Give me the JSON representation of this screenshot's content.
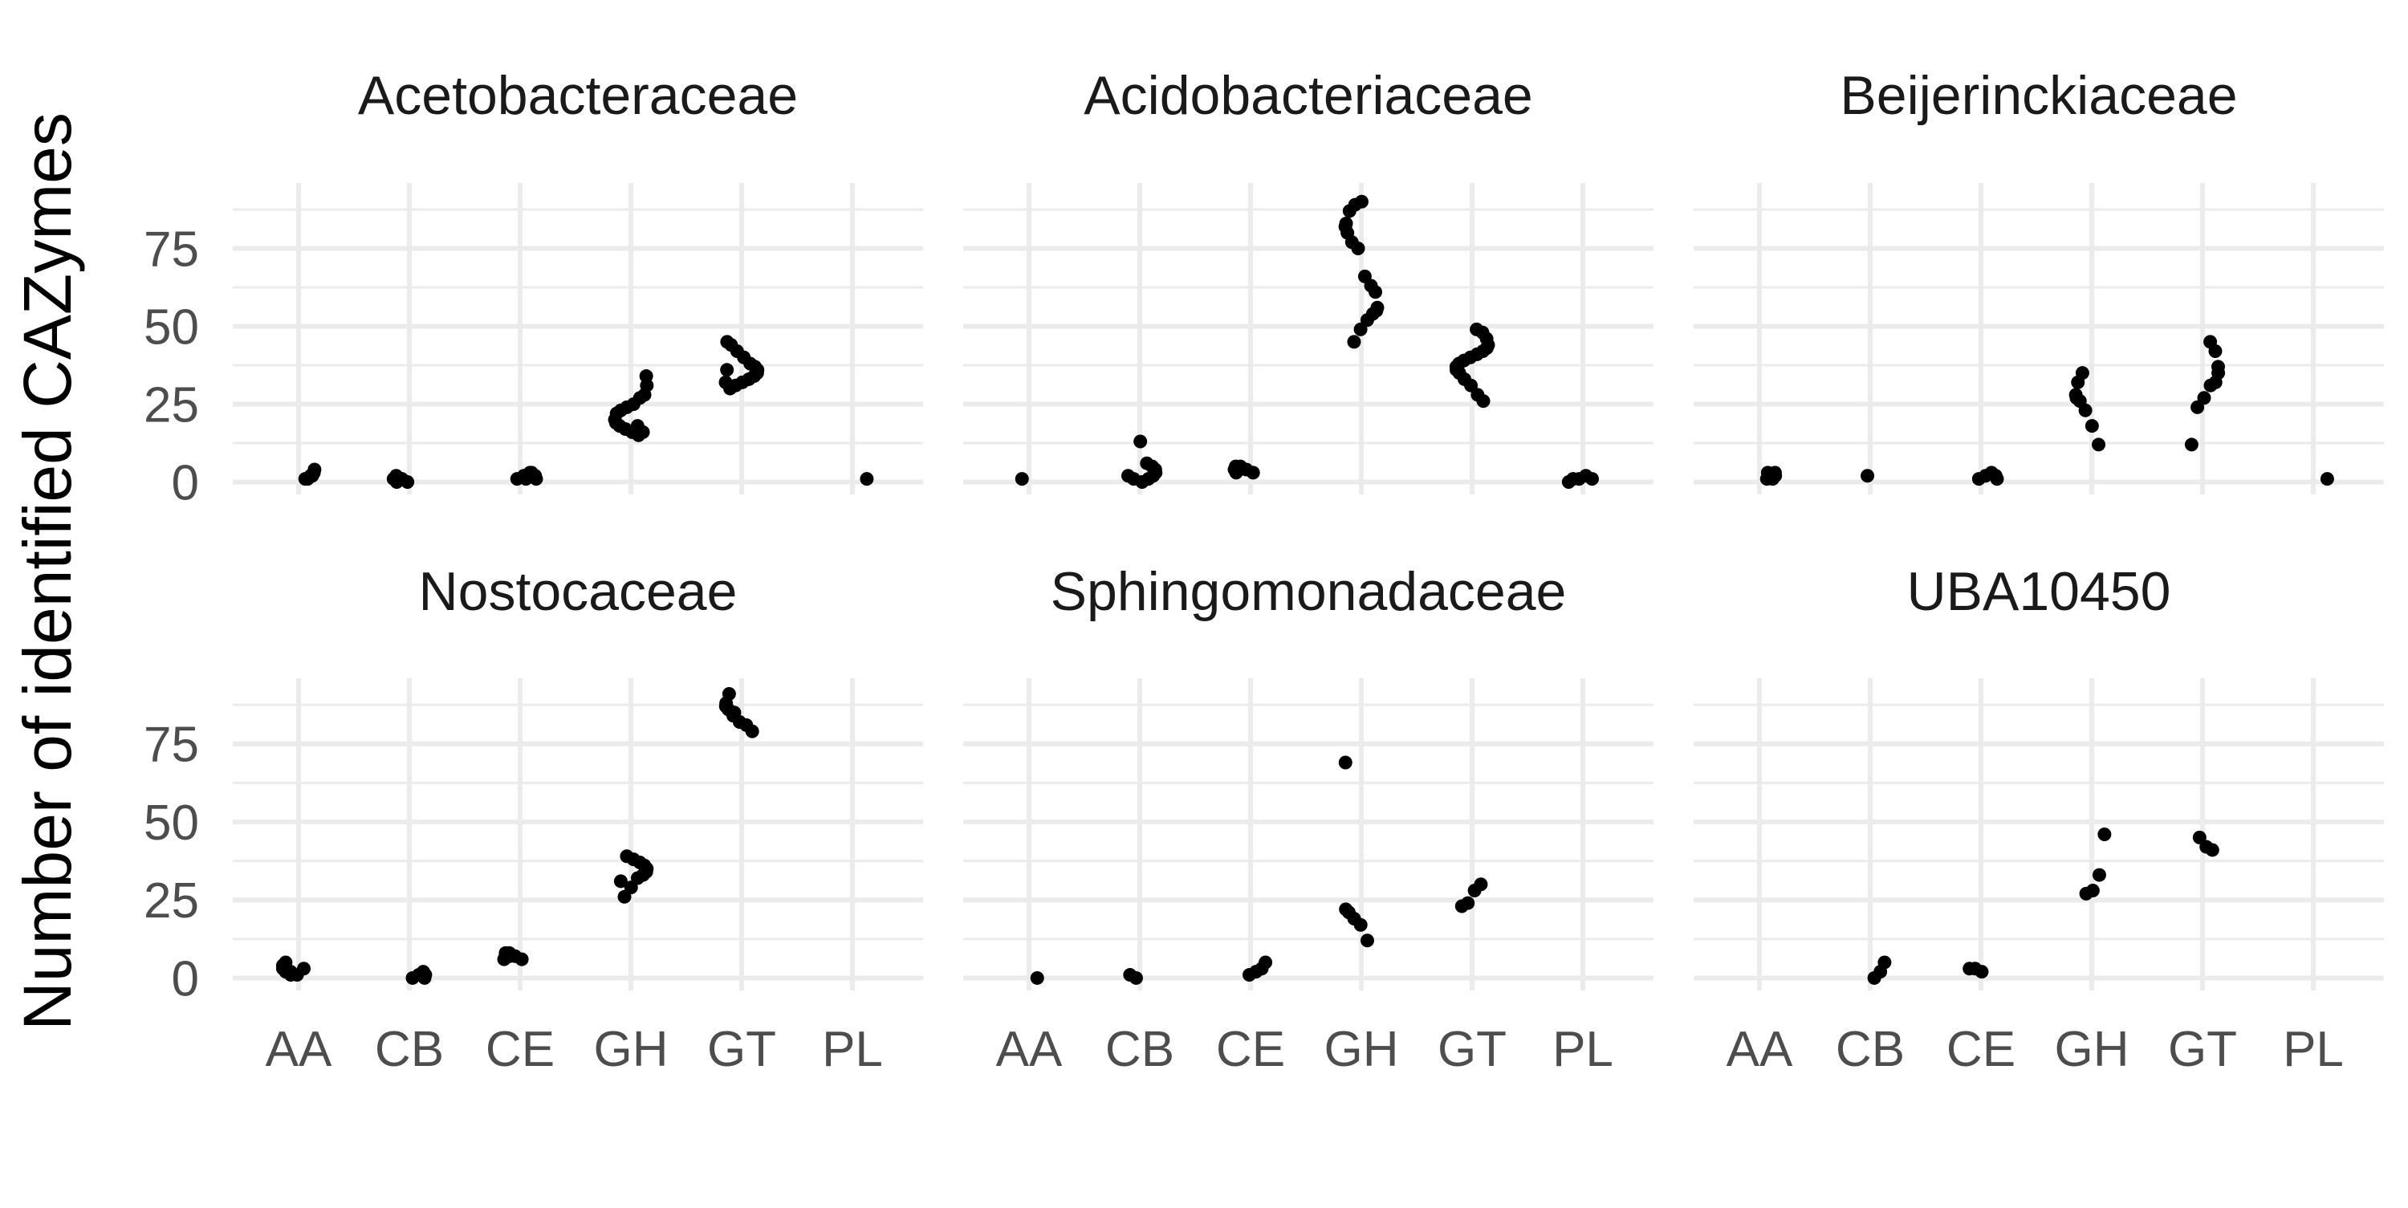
{
  "chart_data": {
    "type": "scatter",
    "ylabel": "Number of identified CAZymes",
    "xlabel": "",
    "categories": [
      "AA",
      "CB",
      "CE",
      "GH",
      "GT",
      "PL"
    ],
    "y_ticks": [
      0,
      25,
      50,
      75
    ],
    "ylim": [
      -4,
      96
    ],
    "grid": true,
    "style": {
      "point_color": "#000000",
      "grid_color": "#ebebeb",
      "background": "#ffffff"
    },
    "panels": [
      {
        "title": "Acetobacteraceae",
        "points": {
          "AA": [
            1,
            2,
            3,
            4,
            2,
            1
          ],
          "CB": [
            0,
            1,
            2,
            1,
            1,
            0,
            1
          ],
          "CE": [
            1,
            2,
            3,
            2,
            1,
            2,
            3,
            1
          ],
          "GH": [
            15,
            16,
            17,
            18,
            19,
            20,
            22,
            23,
            24,
            25,
            27,
            28,
            31,
            34,
            16,
            18
          ],
          "GT": [
            30,
            31,
            32,
            33,
            34,
            35,
            36,
            37,
            38,
            40,
            42,
            44,
            45,
            32,
            36
          ],
          "PL": [
            1
          ]
        }
      },
      {
        "title": "Acidobacteriaceae",
        "points": {
          "AA": [
            1
          ],
          "CB": [
            0,
            1,
            2,
            3,
            4,
            5,
            6,
            13,
            1,
            2
          ],
          "CE": [
            3,
            4,
            5,
            3,
            4,
            5,
            4
          ],
          "GH": [
            45,
            49,
            52,
            54,
            55,
            56,
            61,
            63,
            66,
            75,
            77,
            80,
            82,
            83,
            87,
            89,
            90
          ],
          "GT": [
            26,
            28,
            31,
            33,
            35,
            36,
            37,
            38,
            39,
            40,
            41,
            42,
            43,
            44,
            46,
            48,
            49
          ],
          "PL": [
            0,
            1,
            1,
            2,
            1
          ]
        }
      },
      {
        "title": "Beijerinckiaceae",
        "points": {
          "AA": [
            1,
            2,
            3,
            2,
            1,
            3
          ],
          "CB": [
            2
          ],
          "CE": [
            1,
            2,
            3,
            2,
            1,
            2
          ],
          "GH": [
            12,
            18,
            23,
            26,
            27,
            28,
            32,
            35
          ],
          "GT": [
            12,
            24,
            27,
            31,
            32,
            35,
            37,
            42,
            45
          ],
          "PL": [
            1
          ]
        }
      },
      {
        "title": "Nostocaceae",
        "points": {
          "AA": [
            1,
            2,
            3,
            4,
            5,
            2,
            1,
            3
          ],
          "CB": [
            0,
            1,
            2,
            1,
            0
          ],
          "CE": [
            6,
            7,
            8,
            7,
            6,
            8,
            7
          ],
          "GH": [
            26,
            29,
            32,
            33,
            34,
            35,
            36,
            37,
            38,
            39,
            31
          ],
          "GT": [
            79,
            81,
            82,
            84,
            86,
            87,
            88,
            91,
            85
          ],
          "PL": []
        }
      },
      {
        "title": "Sphingomonadaceae",
        "points": {
          "AA": [
            0
          ],
          "CB": [
            0,
            1
          ],
          "CE": [
            1,
            2,
            3,
            5
          ],
          "GH": [
            12,
            17,
            19,
            21,
            22,
            69
          ],
          "GT": [
            23,
            24,
            28,
            30
          ],
          "PL": []
        }
      },
      {
        "title": "UBA10450",
        "points": {
          "AA": [],
          "CB": [
            0,
            2,
            5
          ],
          "CE": [
            2,
            3,
            3
          ],
          "GH": [
            27,
            28,
            33,
            46
          ],
          "GT": [
            41,
            42,
            45
          ],
          "PL": []
        }
      }
    ]
  }
}
